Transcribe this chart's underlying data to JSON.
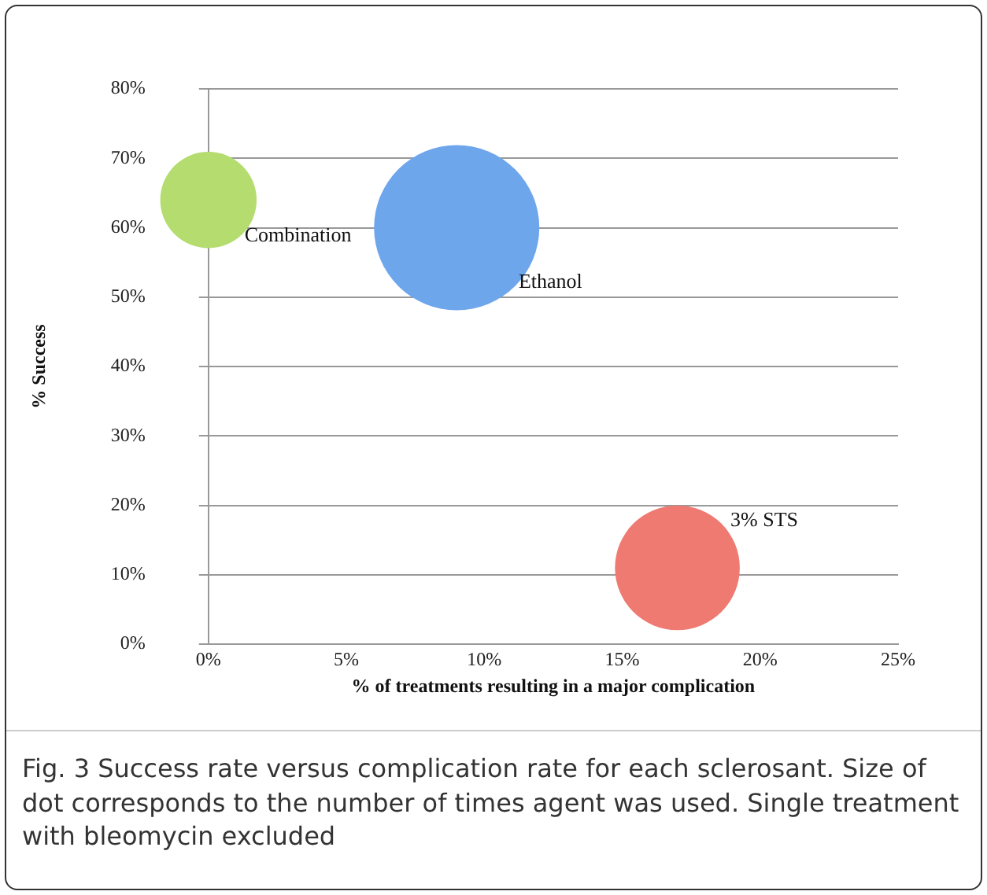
{
  "chart_data": {
    "type": "bubble",
    "xlabel": "% of treatments resulting in a major complication",
    "ylabel": "% Success",
    "series": [
      {
        "name": "Combination",
        "color": "#b4dc6e",
        "x": [
          0
        ],
        "values": [
          64
        ],
        "sizes": [
          0.34
        ]
      },
      {
        "name": "Ethanol",
        "color": "#6ea6ec",
        "x": [
          9
        ],
        "values": [
          60
        ],
        "sizes": [
          1
        ]
      },
      {
        "name": "3% STS",
        "color": "#ef7a72",
        "x": [
          17
        ],
        "values": [
          11
        ],
        "sizes": [
          0.57
        ]
      }
    ],
    "xlim": [
      0,
      25
    ],
    "xticks": [
      {
        "value": 0,
        "label": "0%"
      },
      {
        "value": 5,
        "label": "5%"
      },
      {
        "value": 10,
        "label": "10%"
      },
      {
        "value": 15,
        "label": "15%"
      },
      {
        "value": 20,
        "label": "20%"
      },
      {
        "value": 25,
        "label": "25%"
      }
    ],
    "ylim": [
      0,
      80
    ],
    "yticks": [
      {
        "value": 0,
        "label": "0%"
      },
      {
        "value": 10,
        "label": "10%"
      },
      {
        "value": 20,
        "label": "20%"
      },
      {
        "value": 30,
        "label": "30%"
      },
      {
        "value": 40,
        "label": "40%"
      },
      {
        "value": 50,
        "label": "50%"
      },
      {
        "value": 60,
        "label": "60%"
      },
      {
        "value": 70,
        "label": "70%"
      },
      {
        "value": 80,
        "label": "80%"
      }
    ],
    "grid": "y",
    "legend": false,
    "annotations": [
      "Fig. 3 Success rate versus complication rate for each sclerosant. Size of dot corresponds to the number of times agent was used. Single treatment with bleomycin excluded"
    ]
  }
}
